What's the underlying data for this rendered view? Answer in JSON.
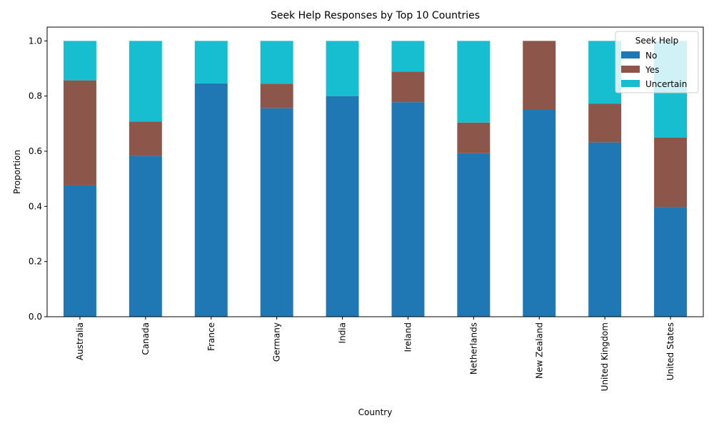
{
  "chart_data": {
    "type": "bar",
    "stacked": true,
    "title": "Seek Help Responses by Top 10 Countries",
    "xlabel": "Country",
    "ylabel": "Proportion",
    "ylim": [
      0,
      1.05
    ],
    "yticks": [
      "0.0",
      "0.2",
      "0.4",
      "0.6",
      "0.8",
      "1.0"
    ],
    "categories": [
      "Australia",
      "Canada",
      "France",
      "Germany",
      "India",
      "Ireland",
      "Netherlands",
      "New Zealand",
      "United Kingdom",
      "United States"
    ],
    "series": [
      {
        "name": "No",
        "color": "#1f77b4",
        "values": [
          0.476,
          0.583,
          0.846,
          0.756,
          0.8,
          0.778,
          0.593,
          0.75,
          0.632,
          0.398
        ]
      },
      {
        "name": "Yes",
        "color": "#8c564b",
        "values": [
          0.381,
          0.125,
          0.0,
          0.089,
          0.0,
          0.111,
          0.111,
          0.25,
          0.14,
          0.252
        ]
      },
      {
        "name": "Uncertain",
        "color": "#17becf",
        "values": [
          0.143,
          0.292,
          0.154,
          0.155,
          0.2,
          0.111,
          0.296,
          0.0,
          0.228,
          0.35
        ]
      }
    ],
    "legend": {
      "title": "Seek Help",
      "placement": "top-right"
    },
    "grid": false
  }
}
